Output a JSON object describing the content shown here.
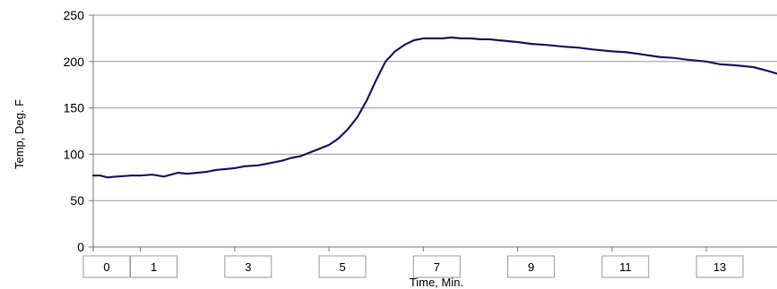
{
  "chart_data": {
    "type": "line",
    "title": "",
    "xlabel": "Time, Min.",
    "ylabel": "Temp, Deg. F",
    "xlim": [
      0,
      14.5
    ],
    "ylim": [
      0,
      250
    ],
    "y_ticks": [
      0,
      50,
      100,
      150,
      200,
      250
    ],
    "x_ticks": [
      0,
      1,
      3,
      5,
      7,
      9,
      11,
      13
    ],
    "grid": true,
    "legend": "none",
    "series": [
      {
        "color": "#1a1a5e",
        "x": [
          0.0,
          0.15,
          0.3,
          0.5,
          0.8,
          1.0,
          1.25,
          1.5,
          1.8,
          2.0,
          2.2,
          2.4,
          2.6,
          2.8,
          3.0,
          3.2,
          3.5,
          3.7,
          4.0,
          4.2,
          4.4,
          4.6,
          4.8,
          5.0,
          5.2,
          5.4,
          5.6,
          5.8,
          6.0,
          6.2,
          6.4,
          6.6,
          6.8,
          7.0,
          7.2,
          7.4,
          7.6,
          7.8,
          8.0,
          8.2,
          8.4,
          8.6,
          8.8,
          9.0,
          9.3,
          9.6,
          10.0,
          10.3,
          10.6,
          11.0,
          11.3,
          11.6,
          12.0,
          12.3,
          12.6,
          13.0,
          13.3,
          13.6,
          14.0,
          14.3,
          14.5
        ],
        "y": [
          77,
          77,
          75,
          76,
          77,
          77,
          78,
          76,
          80,
          79,
          80,
          81,
          83,
          84,
          85,
          87,
          88,
          90,
          93,
          96,
          98,
          102,
          106,
          110,
          117,
          127,
          140,
          158,
          180,
          200,
          211,
          218,
          223,
          225,
          225,
          225,
          226,
          225,
          225,
          224,
          224,
          223,
          222,
          221,
          219,
          218,
          216,
          215,
          213,
          211,
          210,
          208,
          205,
          204,
          202,
          200,
          197,
          196,
          194,
          190,
          187
        ]
      }
    ]
  }
}
